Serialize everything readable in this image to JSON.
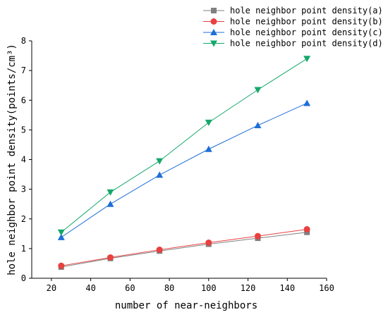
{
  "chart_data": {
    "type": "line",
    "title": "",
    "xlabel": "number of near-neighbors",
    "ylabel": "hole neighbor point density(points/cm³)",
    "xlim": [
      10,
      160
    ],
    "ylim": [
      0,
      8
    ],
    "xticks": [
      20,
      40,
      60,
      80,
      100,
      120,
      140,
      160
    ],
    "yticks": [
      0,
      1,
      2,
      3,
      4,
      5,
      6,
      7,
      8
    ],
    "grid": false,
    "legend_position": "top-right",
    "x": [
      25,
      50,
      75,
      100,
      125,
      150
    ],
    "series": [
      {
        "name": "hole neighbor point density(a)",
        "marker": "square",
        "color": "#808080",
        "values": [
          0.38,
          0.67,
          0.92,
          1.15,
          1.35,
          1.55
        ]
      },
      {
        "name": "hole neighbor point density(b)",
        "marker": "circle",
        "color": "#e8413f",
        "values": [
          0.42,
          0.7,
          0.96,
          1.2,
          1.42,
          1.65
        ]
      },
      {
        "name": "hole neighbor point density(c)",
        "marker": "triangle-up",
        "color": "#1e6fd6",
        "values": [
          1.38,
          2.5,
          3.48,
          4.35,
          5.15,
          5.9
        ]
      },
      {
        "name": "hole neighbor point density(d)",
        "marker": "triangle-down",
        "color": "#14a86a",
        "values": [
          1.55,
          2.9,
          3.95,
          5.25,
          6.35,
          7.4
        ]
      }
    ]
  }
}
